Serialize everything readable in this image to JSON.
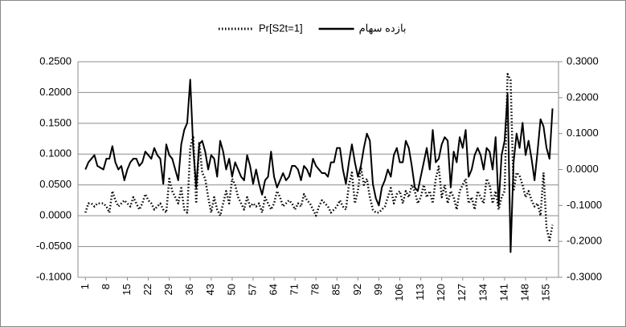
{
  "chart_data": {
    "type": "line",
    "x": [
      1,
      2,
      3,
      4,
      5,
      6,
      7,
      8,
      9,
      10,
      11,
      12,
      13,
      14,
      15,
      16,
      17,
      18,
      19,
      20,
      21,
      22,
      23,
      24,
      25,
      26,
      27,
      28,
      29,
      30,
      31,
      32,
      33,
      34,
      35,
      36,
      37,
      38,
      39,
      40,
      41,
      42,
      43,
      44,
      45,
      46,
      47,
      48,
      49,
      50,
      51,
      52,
      53,
      54,
      55,
      56,
      57,
      58,
      59,
      60,
      61,
      62,
      63,
      64,
      65,
      66,
      67,
      68,
      69,
      70,
      71,
      72,
      73,
      74,
      75,
      76,
      77,
      78,
      79,
      80,
      81,
      82,
      83,
      84,
      85,
      86,
      87,
      88,
      89,
      90,
      91,
      92,
      93,
      94,
      95,
      96,
      97,
      98,
      99,
      100,
      101,
      102,
      103,
      104,
      105,
      106,
      107,
      108,
      109,
      110,
      111,
      112,
      113,
      114,
      115,
      116,
      117,
      118,
      119,
      120,
      121,
      122,
      123,
      124,
      125,
      126,
      127,
      128,
      129,
      130,
      131,
      132,
      133,
      134,
      135,
      136,
      137,
      138,
      139,
      140,
      141,
      142,
      143,
      144,
      145,
      146,
      147,
      148,
      149,
      150,
      151,
      152,
      153,
      154,
      155,
      156,
      157
    ],
    "xlim": [
      -1.5,
      159
    ],
    "xticks": [
      1,
      8,
      15,
      22,
      29,
      36,
      43,
      50,
      57,
      64,
      71,
      78,
      85,
      92,
      99,
      106,
      113,
      120,
      127,
      134,
      141,
      148,
      155
    ],
    "ylim": [
      -0.1,
      0.25
    ],
    "yticks": [
      {
        "value": -0.1,
        "label": "-0.1000"
      },
      {
        "value": -0.05,
        "label": "-0.0500"
      },
      {
        "value": 0,
        "label": "0.0000"
      },
      {
        "value": 0.05,
        "label": "0.0500"
      },
      {
        "value": 0.1,
        "label": "0.1000"
      },
      {
        "value": 0.15,
        "label": "0.1500"
      },
      {
        "value": 0.2,
        "label": "0.2000"
      },
      {
        "value": 0.25,
        "label": "0.2500"
      }
    ],
    "y2lim": [
      -0.3,
      0.3
    ],
    "y2ticks": [
      {
        "value": -0.3,
        "label": "-0.3000"
      },
      {
        "value": -0.2,
        "label": "-0.2000"
      },
      {
        "value": -0.1,
        "label": "-0.1000"
      },
      {
        "value": 0,
        "label": "0.0000"
      },
      {
        "value": 0.1,
        "label": "0.1000"
      },
      {
        "value": 0.2,
        "label": "0.2000"
      },
      {
        "value": 0.3,
        "label": "0.3000"
      }
    ],
    "grid": true,
    "legend": "top",
    "series": [
      {
        "name": "Pr[S2t=1]",
        "color": "#000000",
        "dash": "dotted",
        "values": [
          0.005,
          0.02,
          0.02,
          0.015,
          0.02,
          0.02,
          0.02,
          0.015,
          0.005,
          0.04,
          0.025,
          0.015,
          0.02,
          0.025,
          0.02,
          0.015,
          0.03,
          0.02,
          0.01,
          0.02,
          0.035,
          0.025,
          0.02,
          0.01,
          0.015,
          0.02,
          0.01,
          0.005,
          0.06,
          0.04,
          0.03,
          0.02,
          0.045,
          0.01,
          0.005,
          0.11,
          0.13,
          0.02,
          0.12,
          0.07,
          0.06,
          0.03,
          0.005,
          0.03,
          0.01,
          0.0,
          0.02,
          0.04,
          0.02,
          0.06,
          0.05,
          0.03,
          0.02,
          0.01,
          0.03,
          0.015,
          0.02,
          0.015,
          0.02,
          0.005,
          0.03,
          0.02,
          0.01,
          0.02,
          0.04,
          0.03,
          0.015,
          0.02,
          0.025,
          0.02,
          0.01,
          0.02,
          0.015,
          0.035,
          0.025,
          0.02,
          0.01,
          0.0,
          0.015,
          0.025,
          0.02,
          0.015,
          0.005,
          0.01,
          0.015,
          0.025,
          0.015,
          0.01,
          0.05,
          0.07,
          0.02,
          0.04,
          0.08,
          0.05,
          0.06,
          0.03,
          0.01,
          0.005,
          0.005,
          0.01,
          0.015,
          0.03,
          0.045,
          0.02,
          0.035,
          0.04,
          0.02,
          0.04,
          0.03,
          0.05,
          0.04,
          0.02,
          0.03,
          0.05,
          0.03,
          0.04,
          0.02,
          0.06,
          0.08,
          0.03,
          0.05,
          0.02,
          0.04,
          0.03,
          0.01,
          0.04,
          0.05,
          0.06,
          0.02,
          0.03,
          0.01,
          0.04,
          0.03,
          0.02,
          0.06,
          0.05,
          0.02,
          0.04,
          0.01,
          0.03,
          0.04,
          0.23,
          0.22,
          0.04,
          0.07,
          0.065,
          0.05,
          0.03,
          0.04,
          0.025,
          0.015,
          0.02,
          0.0,
          0.07,
          -0.02,
          -0.04,
          -0.015
        ]
      },
      {
        "name": "بازده سهام",
        "color": "#000000",
        "dash": "solid",
        "axis": "y2",
        "values": [
          0.0,
          0.02,
          0.03,
          0.04,
          0.01,
          0.005,
          0.0,
          0.03,
          0.03,
          0.065,
          0.02,
          0.0,
          0.01,
          -0.03,
          0.0,
          0.02,
          0.03,
          0.03,
          0.01,
          0.02,
          0.05,
          0.04,
          0.03,
          0.06,
          0.04,
          0.03,
          -0.04,
          0.07,
          0.04,
          0.03,
          0.0,
          -0.03,
          0.07,
          0.11,
          0.13,
          0.25,
          0.06,
          -0.05,
          0.07,
          0.08,
          0.05,
          0.0,
          0.04,
          0.03,
          -0.02,
          0.08,
          0.05,
          0.0,
          0.03,
          -0.02,
          0.02,
          0.0,
          -0.02,
          -0.03,
          0.04,
          0.01,
          -0.04,
          0.0,
          -0.04,
          -0.07,
          -0.03,
          -0.02,
          0.05,
          -0.02,
          -0.05,
          -0.03,
          -0.01,
          -0.03,
          -0.02,
          0.01,
          0.01,
          0.0,
          -0.03,
          0.01,
          0.0,
          -0.02,
          0.03,
          0.01,
          0.0,
          -0.01,
          -0.01,
          -0.02,
          0.02,
          0.02,
          0.06,
          0.06,
          0.0,
          -0.04,
          0.02,
          0.07,
          0.02,
          -0.02,
          0.01,
          0.06,
          0.1,
          0.08,
          -0.04,
          -0.08,
          -0.1,
          -0.05,
          -0.03,
          0.0,
          -0.02,
          0.04,
          0.06,
          0.02,
          0.02,
          0.08,
          0.06,
          0.01,
          -0.05,
          -0.06,
          -0.02,
          0.02,
          0.06,
          0.0,
          0.11,
          0.02,
          0.03,
          0.07,
          0.09,
          0.08,
          -0.05,
          0.05,
          0.02,
          0.09,
          0.06,
          0.11,
          -0.02,
          0.0,
          0.04,
          0.06,
          0.04,
          0.0,
          0.06,
          0.05,
          0.0,
          0.09,
          -0.1,
          0.04,
          0.08,
          0.21,
          -0.23,
          0.02,
          0.1,
          0.06,
          0.13,
          0.04,
          0.08,
          0.03,
          -0.03,
          0.05,
          0.14,
          0.12,
          0.06,
          0.03,
          0.17
        ]
      }
    ]
  }
}
